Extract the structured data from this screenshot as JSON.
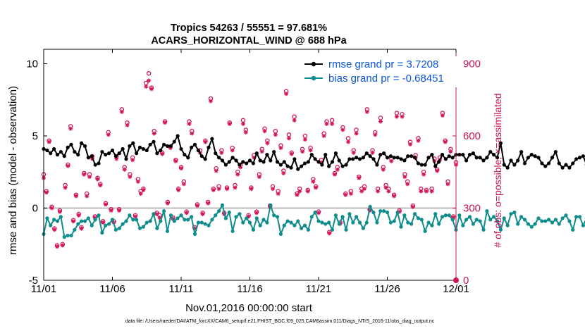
{
  "chart_data": {
    "type": "line",
    "title": "Tropics 54263 / 55551 = 97.681%",
    "subtitle": "ACARS_HORIZONTAL_WIND @ 688 hPa",
    "xlabel": "Nov.01,2016 00:00:00 start",
    "ylabel": "rmse and bias (model - observation)",
    "y2label": "# of obs: o=possible; ×=assimilated",
    "footnote": "data file: /Users/raeder/DAI/ATM_forcXX/CAM6_setup/f.e21.FHIST_BGC.f09_025.CAM6assim.011/Diags_NTrS_2016-11/obs_diag_output.nc",
    "xlim": [
      0,
      30
    ],
    "ylim": [
      -5,
      11
    ],
    "y2lim": [
      0,
      960
    ],
    "x_ticks": [
      {
        "value": 0,
        "label": "11/01"
      },
      {
        "value": 5,
        "label": "11/06"
      },
      {
        "value": 10,
        "label": "11/11"
      },
      {
        "value": 15,
        "label": "11/16"
      },
      {
        "value": 20,
        "label": "11/21"
      },
      {
        "value": 25,
        "label": "11/26"
      },
      {
        "value": 30,
        "label": "12/01"
      }
    ],
    "y_ticks": [
      {
        "value": -5,
        "label": "-5"
      },
      {
        "value": 0,
        "label": "0"
      },
      {
        "value": 5,
        "label": "5"
      },
      {
        "value": 10,
        "label": "10"
      }
    ],
    "y2_ticks": [
      {
        "value": 0,
        "label": "0"
      },
      {
        "value": 300,
        "label": "300"
      },
      {
        "value": 600,
        "label": "600"
      },
      {
        "value": 900,
        "label": "900"
      }
    ],
    "step_days": 0.25,
    "series": [
      {
        "name": "rmse grand pr = 3.7208",
        "color": "#000000",
        "axis": "left",
        "values": [
          4.1,
          4.0,
          3.8,
          4.1,
          3.7,
          3.9,
          3.6,
          4.2,
          4.4,
          3.9,
          3.7,
          4.5,
          4.3,
          3.5,
          3.6,
          3.0,
          3.1,
          3.9,
          3.7,
          3.8,
          4.0,
          3.6,
          3.8,
          4.1,
          3.4,
          4.3,
          4.5,
          3.8,
          4.2,
          4.1,
          4.0,
          4.4,
          4.6,
          3.8,
          4.0,
          4.4,
          4.3,
          4.3,
          4.6,
          5.0,
          4.1,
          3.7,
          3.5,
          4.2,
          4.4,
          4.0,
          3.6,
          3.4,
          4.2,
          4.8,
          3.8,
          3.5,
          3.3,
          3.0,
          3.2,
          3.5,
          3.3,
          3.0,
          3.2,
          3.1,
          3.3,
          3.1,
          3.8,
          3.3,
          3.2,
          3.7,
          3.3,
          3.9,
          3.2,
          3.0,
          3.2,
          2.9,
          2.8,
          3.4,
          2.7,
          2.9,
          3.1,
          3.2,
          3.7,
          3.4,
          3.2,
          3.0,
          3.7,
          2.9,
          3.2,
          3.8,
          3.3,
          2.9,
          3.0,
          3.4,
          3.4,
          3.5,
          3.4,
          3.5,
          3.8,
          3.6,
          3.4,
          3.0,
          3.7,
          3.8,
          3.5,
          3.6,
          3.5,
          3.5,
          3.4,
          3.3,
          3.6,
          3.6,
          3.5,
          3.1,
          3.0,
          3.0,
          3.5,
          3.7,
          2.9,
          3.2,
          3.7,
          3.4,
          3.6,
          3.5,
          3.7,
          3.7,
          3.7,
          3.3,
          3.7,
          3.8,
          3.5,
          3.5,
          3.3,
          3.5,
          3.9,
          3.7,
          3.5,
          4.5,
          3.0,
          2.8,
          3.3,
          3.0,
          3.3,
          3.9,
          3.1,
          3.5,
          3.7,
          3.6,
          3.5,
          3.1,
          2.9,
          3.1,
          3.5,
          3.9,
          3.1,
          2.8,
          3.0,
          2.8,
          3.1,
          3.4,
          3.5,
          3.6,
          3.0,
          3.6,
          3.5,
          3.9,
          4.3,
          3.8,
          3.4,
          4.5,
          4.6,
          4.7,
          4.4,
          3.8,
          3.9,
          4.1,
          4.0,
          4.6,
          4.7,
          4.3,
          4.2,
          4.9,
          5.0,
          5.2,
          4.7,
          4.6,
          4.3,
          5.0,
          4.7,
          4.5,
          3.8,
          3.6,
          3.5,
          4.1,
          3.6,
          3.6,
          3.6,
          3.4,
          4.1,
          4.0,
          4.0,
          3.2,
          3.6,
          3.0,
          3.2,
          3.7,
          3.5,
          3.1,
          3.2,
          3.3,
          3.8,
          3.1,
          3.6,
          3.7,
          3.3,
          3.8,
          4.0,
          3.8,
          4.5,
          4.4,
          4.5,
          4.5,
          4.3,
          4.4,
          4.5,
          3.7,
          3.4,
          3.6,
          3.9,
          3.3,
          3.5,
          3.7,
          3.7,
          3.6,
          3.3,
          4.1,
          4.2,
          4.1,
          4.0,
          3.3,
          4.0,
          4.3,
          3.8,
          3.5,
          3.4,
          3.5,
          4.6,
          4.2,
          4.0,
          3.5,
          4.3,
          3.6,
          3.7,
          3.8,
          4.3,
          3.9,
          3.5,
          4.0,
          4.2,
          4.2,
          3.5,
          3.9,
          4.5,
          4.7,
          4.6,
          3.8,
          4.2,
          4.1,
          4.2,
          4.2,
          4.6,
          4.2,
          5.3,
          5.1,
          4.2,
          4.8,
          4.4,
          4.5,
          3.8,
          4.8,
          4.6,
          4.5,
          4.5,
          4.3,
          4.0,
          4.6,
          4.6,
          4.5,
          4.6,
          4.7,
          3.9,
          3.7,
          3.5
        ]
      },
      {
        "name": "bias grand pr = -0.68451",
        "color": "#0f8c8c",
        "axis": "left",
        "values": [
          -1.8,
          -0.7,
          -1.2,
          -0.8,
          -0.9,
          -0.6,
          -2.0,
          -1.9,
          -1.9,
          -1.5,
          -1.1,
          -0.9,
          -0.9,
          -0.7,
          -1.2,
          -0.8,
          -0.5,
          -1.7,
          -1.2,
          -1.1,
          -0.8,
          -1.5,
          -1.4,
          -1.1,
          -0.9,
          -0.5,
          -0.8,
          -0.8,
          -1.4,
          -1.3,
          -1.0,
          -0.9,
          -0.4,
          -1.4,
          -0.9,
          -0.2,
          -1.6,
          -0.5,
          -0.9,
          -0.7,
          -0.5,
          -0.8,
          -0.8,
          -0.6,
          -1.8,
          -1.0,
          -1.0,
          -1.1,
          -1.2,
          -0.8,
          -0.5,
          -0.2,
          0.2,
          -0.7,
          -0.3,
          -1.6,
          -0.6,
          -0.4,
          -1.0,
          -0.7,
          -1.0,
          -1.5,
          -0.7,
          -1.2,
          -0.8,
          -1.0,
          0.2,
          -0.5,
          -0.6,
          -1.8,
          -1.2,
          -0.9,
          -1.0,
          -1.2,
          -0.9,
          -1.4,
          -1.2,
          -1.5,
          -0.6,
          -0.3,
          -0.9,
          -1.0,
          -1.1,
          -1.0,
          -1.5,
          -0.5,
          -1.1,
          -0.6,
          -1.5,
          -0.4,
          -1.0,
          -0.6,
          -1.0,
          -1.4,
          -1.0,
          0.1,
          -0.3,
          -1.0,
          -0.2,
          -0.2,
          -0.3,
          -1.0,
          -0.9,
          -0.3,
          -1.3,
          -0.5,
          -1.0,
          -1.1,
          -0.4,
          -0.7,
          -0.8,
          -1.6,
          -1.0,
          -1.2,
          -0.4,
          -1.1,
          -0.6,
          -0.5,
          -0.5,
          -0.8,
          -1.5,
          -0.5,
          -1.2,
          -0.8,
          -0.6,
          -1.1,
          -0.8,
          -0.9,
          -1.5,
          -0.2,
          -0.8,
          -0.6,
          -0.9,
          -1.5,
          -0.7,
          -1.2,
          -0.4,
          -0.3,
          -1.1,
          -0.6,
          -0.8,
          -1.1,
          -1.3,
          -1.1,
          -0.7,
          -0.9,
          -0.9,
          -0.8,
          -1.0,
          -0.8,
          -1.1,
          -0.7,
          -0.5,
          -0.9,
          -1.5,
          -0.6,
          -0.6,
          -1.2,
          -0.7,
          -0.4,
          -1.0,
          -0.6,
          -0.8,
          -1.2,
          -0.5,
          -1.1,
          -0.7,
          -0.9,
          -0.6,
          -1.5,
          -0.7,
          -0.5,
          -1.0,
          -1.4,
          -0.7,
          -1.3,
          -1.3,
          -0.9,
          -0.6,
          -0.5,
          -1.3,
          -0.9,
          -0.7,
          -1.2,
          -1.3,
          -1.0,
          -0.8,
          -0.9,
          -0.6,
          -1.1,
          -1.0,
          -0.5,
          -1.0,
          -0.8,
          -1.3,
          -1.6,
          -1.1,
          -1.1,
          -0.5,
          -1.2,
          -0.8,
          -0.8,
          -0.5,
          -1.3,
          -0.9,
          -0.8,
          -0.4,
          -1.1,
          -0.6,
          -0.8,
          -1.3,
          -1.1,
          -1.1,
          -0.8,
          -1.0,
          -1.0,
          -1.3,
          -1.1,
          -1.3,
          -1.3,
          -0.8,
          -1.1,
          -1.4,
          -1.2,
          -0.6,
          -1.0,
          -0.9,
          -1.0,
          -1.4,
          -0.9,
          -0.8,
          -1.1,
          -1.3,
          -1.5,
          -1.3,
          -1.1,
          -1.1,
          -0.8,
          -1.0,
          -0.9,
          -0.9,
          -0.9,
          -1.1,
          -0.7,
          -1.1,
          -1.3,
          -0.9,
          -1.0,
          -1.4,
          -0.8,
          -0.7,
          -1.0,
          -0.8,
          -1.2,
          -0.9,
          -0.7,
          -1.1,
          -0.5,
          -0.6,
          -0.8,
          -0.5,
          -0.7,
          -1.0,
          -1.0,
          -0.7,
          -0.2,
          -0.7,
          -0.7,
          -0.4,
          -0.8,
          -0.6,
          -0.4,
          -0.7,
          -0.8,
          -0.8,
          -0.2,
          -0.2,
          -0.3,
          -0.3,
          -0.5,
          -0.8,
          -0.4,
          -0.5,
          -0.6,
          -0.7,
          -1.0,
          -1.0,
          -1.1,
          -0.8,
          -0.9
        ]
      }
    ],
    "obs_possible_values": [
      440,
      370,
      580,
      305,
      215,
      145,
      290,
      150,
      395,
      480,
      640,
      250,
      355,
      275,
      220,
      445,
      360,
      440,
      515,
      265,
      425,
      400,
      245,
      320,
      615,
      295,
      245,
      515,
      295,
      710,
      470,
      655,
      440,
      510,
      270,
      420,
      370,
      380,
      820,
      860,
      800,
      620,
      280,
      270,
      530,
      660,
      325,
      555,
      260,
      500,
      380,
      470,
      410,
      285,
      660,
      620,
      220,
      315,
      540,
      280,
      580,
      325,
      755,
      380,
      465,
      390,
      540,
      280,
      385,
      655,
      550,
      395,
      450,
      480,
      665,
      625,
      270,
      385,
      520,
      285,
      440,
      545,
      630,
      580,
      310,
      390,
      620,
      370,
      560,
      455,
      785,
      605,
      530,
      680,
      360,
      380,
      545,
      600,
      375,
      550,
      420,
      390,
      285,
      500,
      610,
      660,
      200,
      665,
      445,
      470,
      240,
      635,
      360,
      590,
      370,
      540,
      625,
      430,
      380,
      390,
      710,
      295,
      540,
      615,
      380,
      675,
      470,
      395,
      380,
      505,
      355,
      695,
      290,
      690,
      440,
      410,
      575,
      310,
      520,
      590,
      380,
      450,
      375,
      830,
      380,
      505,
      460,
      510,
      695,
      580,
      410,
      545,
      265,
      490
    ],
    "obs_assimilated_values": [
      425,
      365,
      575,
      300,
      210,
      140,
      285,
      145,
      385,
      475,
      630,
      245,
      350,
      270,
      215,
      440,
      350,
      430,
      505,
      260,
      420,
      395,
      240,
      315,
      605,
      290,
      240,
      505,
      290,
      700,
      460,
      645,
      430,
      500,
      265,
      410,
      360,
      375,
      805,
      830,
      795,
      610,
      275,
      260,
      525,
      655,
      320,
      550,
      255,
      495,
      375,
      465,
      400,
      280,
      650,
      610,
      215,
      310,
      530,
      275,
      575,
      320,
      745,
      375,
      455,
      380,
      530,
      275,
      380,
      650,
      540,
      385,
      440,
      470,
      650,
      615,
      265,
      380,
      510,
      280,
      430,
      535,
      620,
      570,
      305,
      380,
      605,
      360,
      550,
      445,
      775,
      590,
      525,
      665,
      355,
      370,
      535,
      585,
      370,
      540,
      410,
      385,
      280,
      490,
      600,
      650,
      195,
      650,
      440,
      460,
      235,
      625,
      355,
      575,
      360,
      530,
      610,
      425,
      370,
      380,
      700,
      290,
      530,
      605,
      370,
      660,
      460,
      385,
      370,
      495,
      350,
      680,
      285,
      680,
      430,
      400,
      565,
      305,
      510,
      580,
      370,
      440,
      370,
      820,
      370,
      495,
      455,
      500,
      685,
      575,
      400,
      535,
      260,
      480
    ],
    "rmse_legend_label": "rmse grand pr = 3.7208",
    "bias_legend_label": "bias grand pr = -0.68451",
    "legend_location": "top-right",
    "grid": false,
    "zero_line": true
  },
  "colors": {
    "rmse": "#000000",
    "bias": "#0f8c8c",
    "obs": "#d4145a",
    "zero_line": "#bbbbbb",
    "legend_text": "#0a55d8",
    "axis_right": "#c8145a"
  }
}
